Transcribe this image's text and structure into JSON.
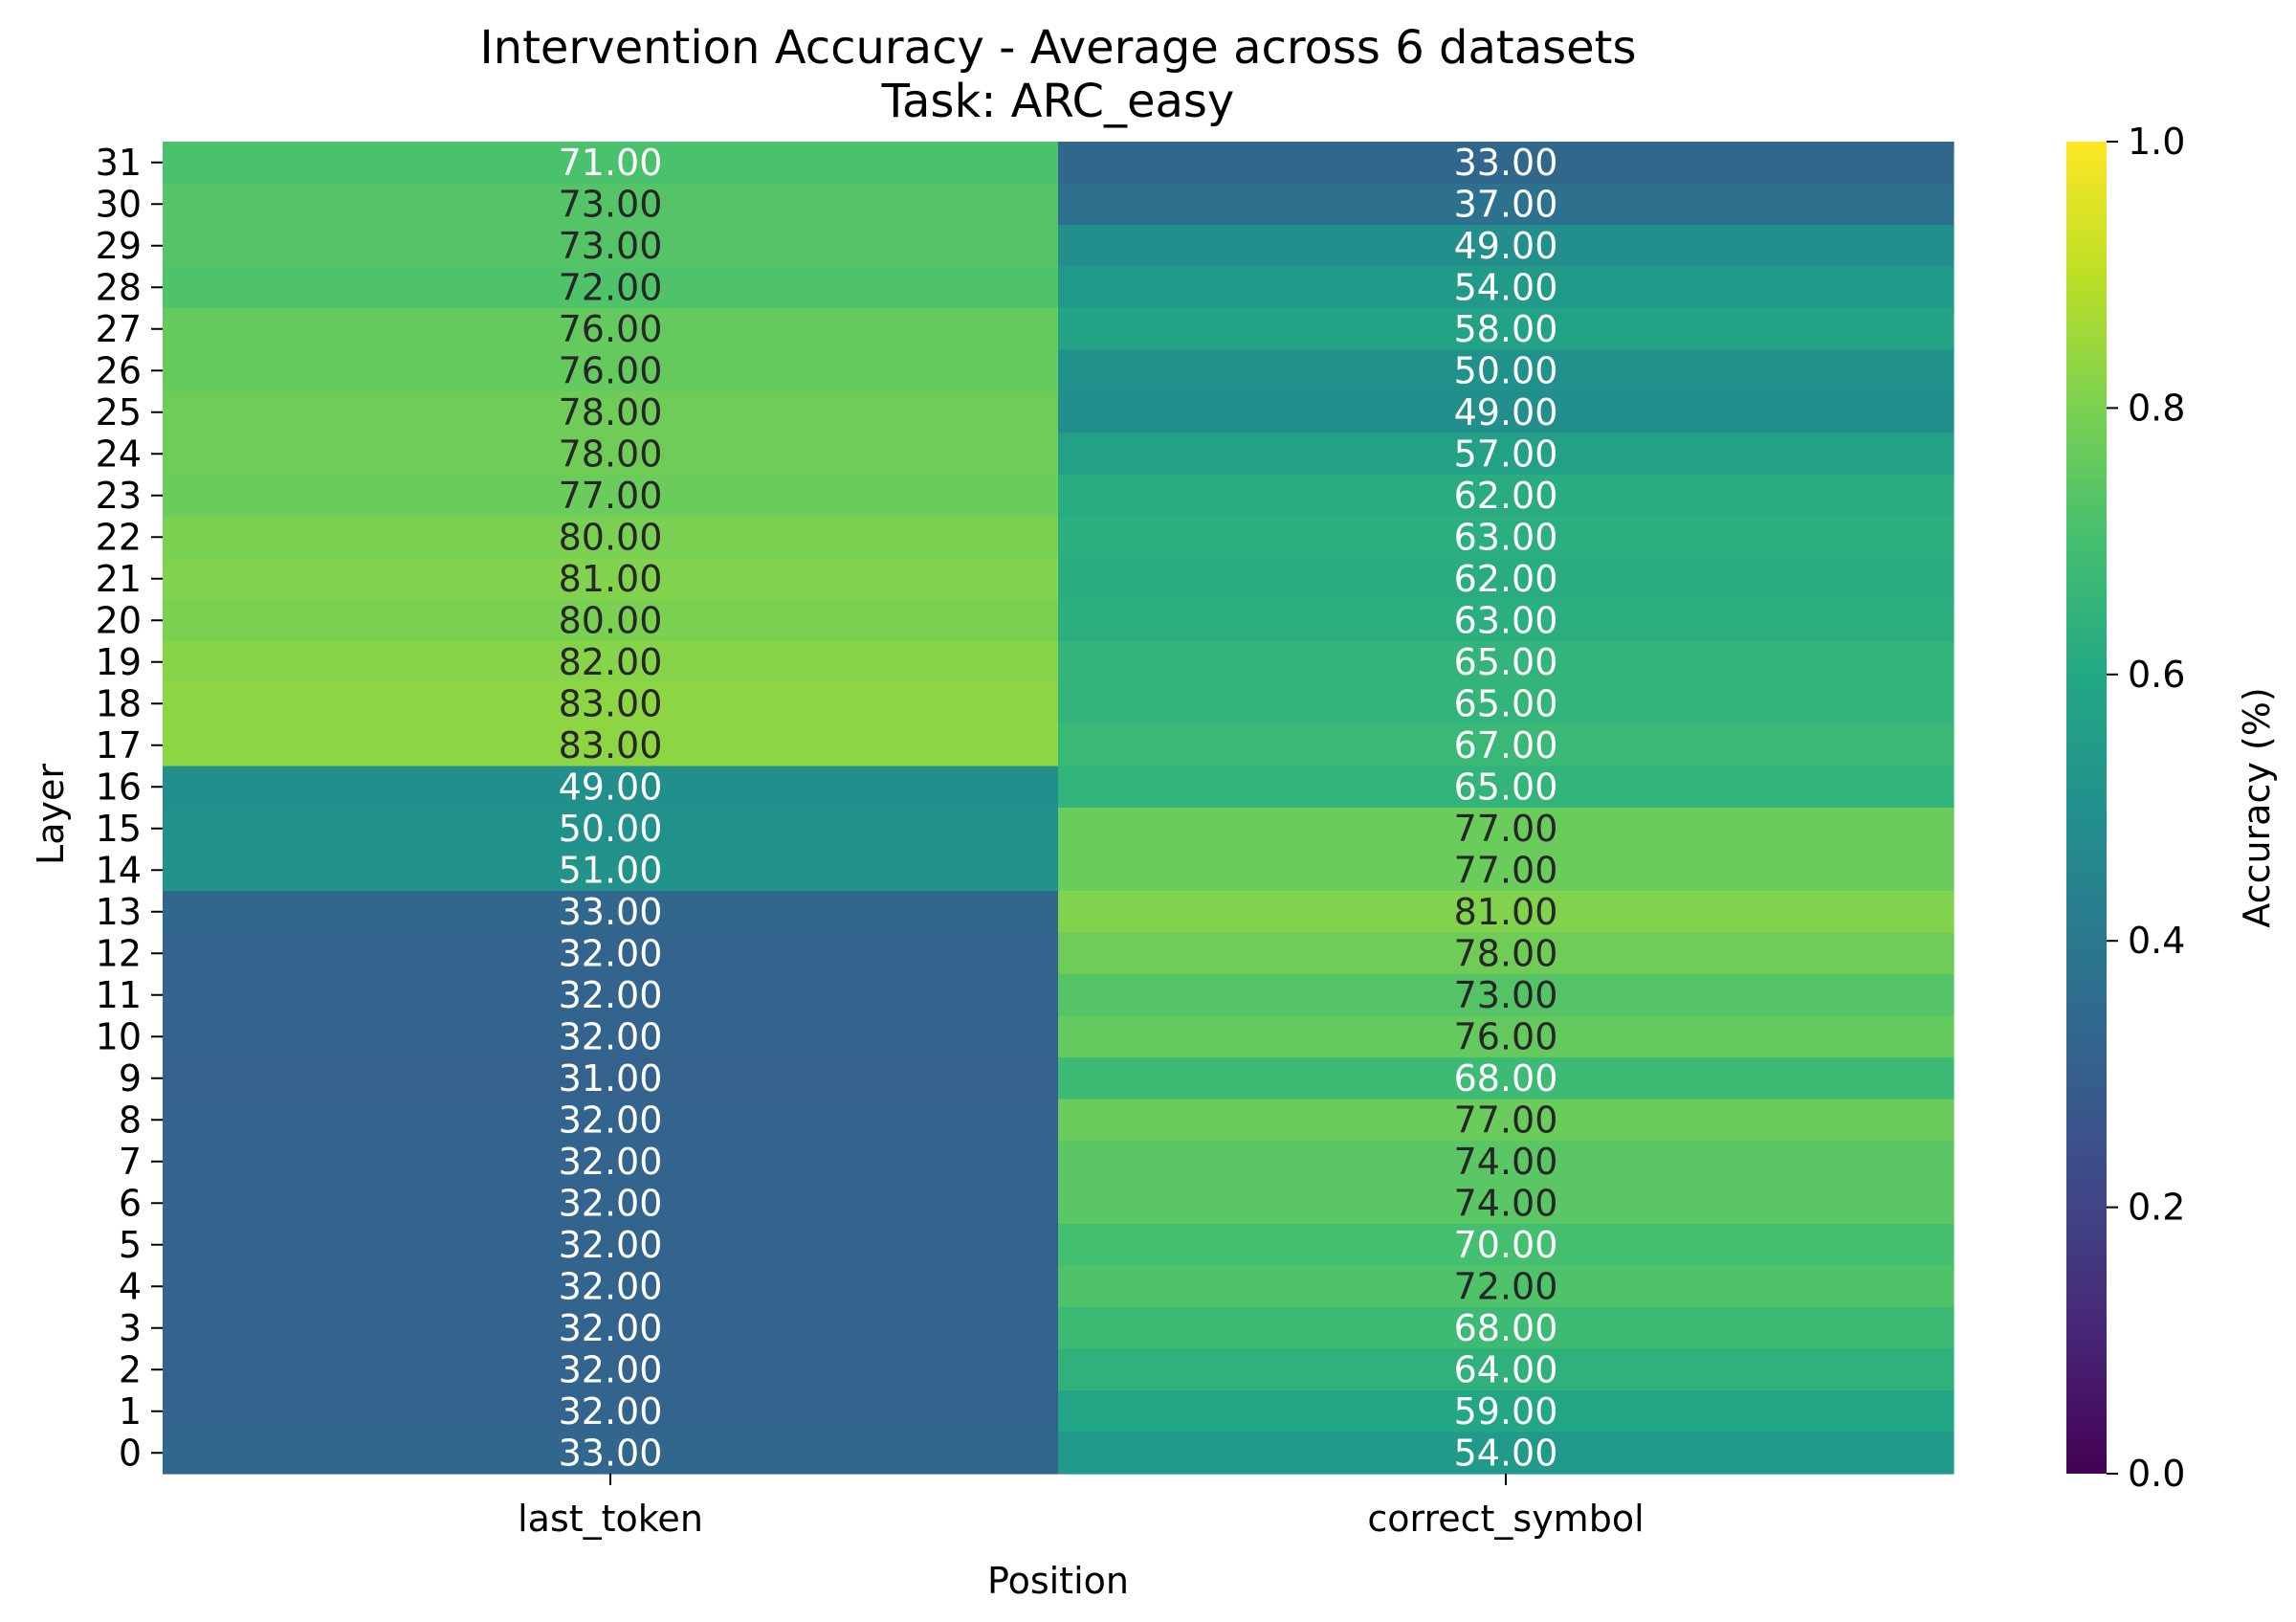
{
  "chart_data": {
    "type": "heatmap",
    "title": "Intervention Accuracy - Average across 6 datasets",
    "subtitle": "Task: ARC_easy",
    "xlabel": "Position",
    "ylabel": "Layer",
    "colorbar_label": "Accuracy (%)",
    "colormap": "viridis",
    "colorbar_range": [
      0,
      1
    ],
    "colorbar_ticks": [
      "0.0",
      "0.2",
      "0.4",
      "0.6",
      "0.8",
      "1.0"
    ],
    "columns": [
      "last_token",
      "correct_symbol"
    ],
    "rows": [
      "31",
      "30",
      "29",
      "28",
      "27",
      "26",
      "25",
      "24",
      "23",
      "22",
      "21",
      "20",
      "19",
      "18",
      "17",
      "16",
      "15",
      "14",
      "13",
      "12",
      "11",
      "10",
      "9",
      "8",
      "7",
      "6",
      "5",
      "4",
      "3",
      "2",
      "1",
      "0"
    ],
    "values": [
      [
        71,
        33
      ],
      [
        73,
        37
      ],
      [
        73,
        49
      ],
      [
        72,
        54
      ],
      [
        76,
        58
      ],
      [
        76,
        50
      ],
      [
        78,
        49
      ],
      [
        78,
        57
      ],
      [
        77,
        62
      ],
      [
        80,
        63
      ],
      [
        81,
        62
      ],
      [
        80,
        63
      ],
      [
        82,
        65
      ],
      [
        83,
        65
      ],
      [
        83,
        67
      ],
      [
        49,
        65
      ],
      [
        50,
        77
      ],
      [
        51,
        77
      ],
      [
        33,
        81
      ],
      [
        32,
        78
      ],
      [
        32,
        73
      ],
      [
        32,
        76
      ],
      [
        31,
        68
      ],
      [
        32,
        77
      ],
      [
        32,
        74
      ],
      [
        32,
        74
      ],
      [
        32,
        70
      ],
      [
        32,
        72
      ],
      [
        32,
        68
      ],
      [
        32,
        64
      ],
      [
        32,
        59
      ],
      [
        33,
        54
      ]
    ],
    "value_format": "0.00",
    "grid": false
  }
}
